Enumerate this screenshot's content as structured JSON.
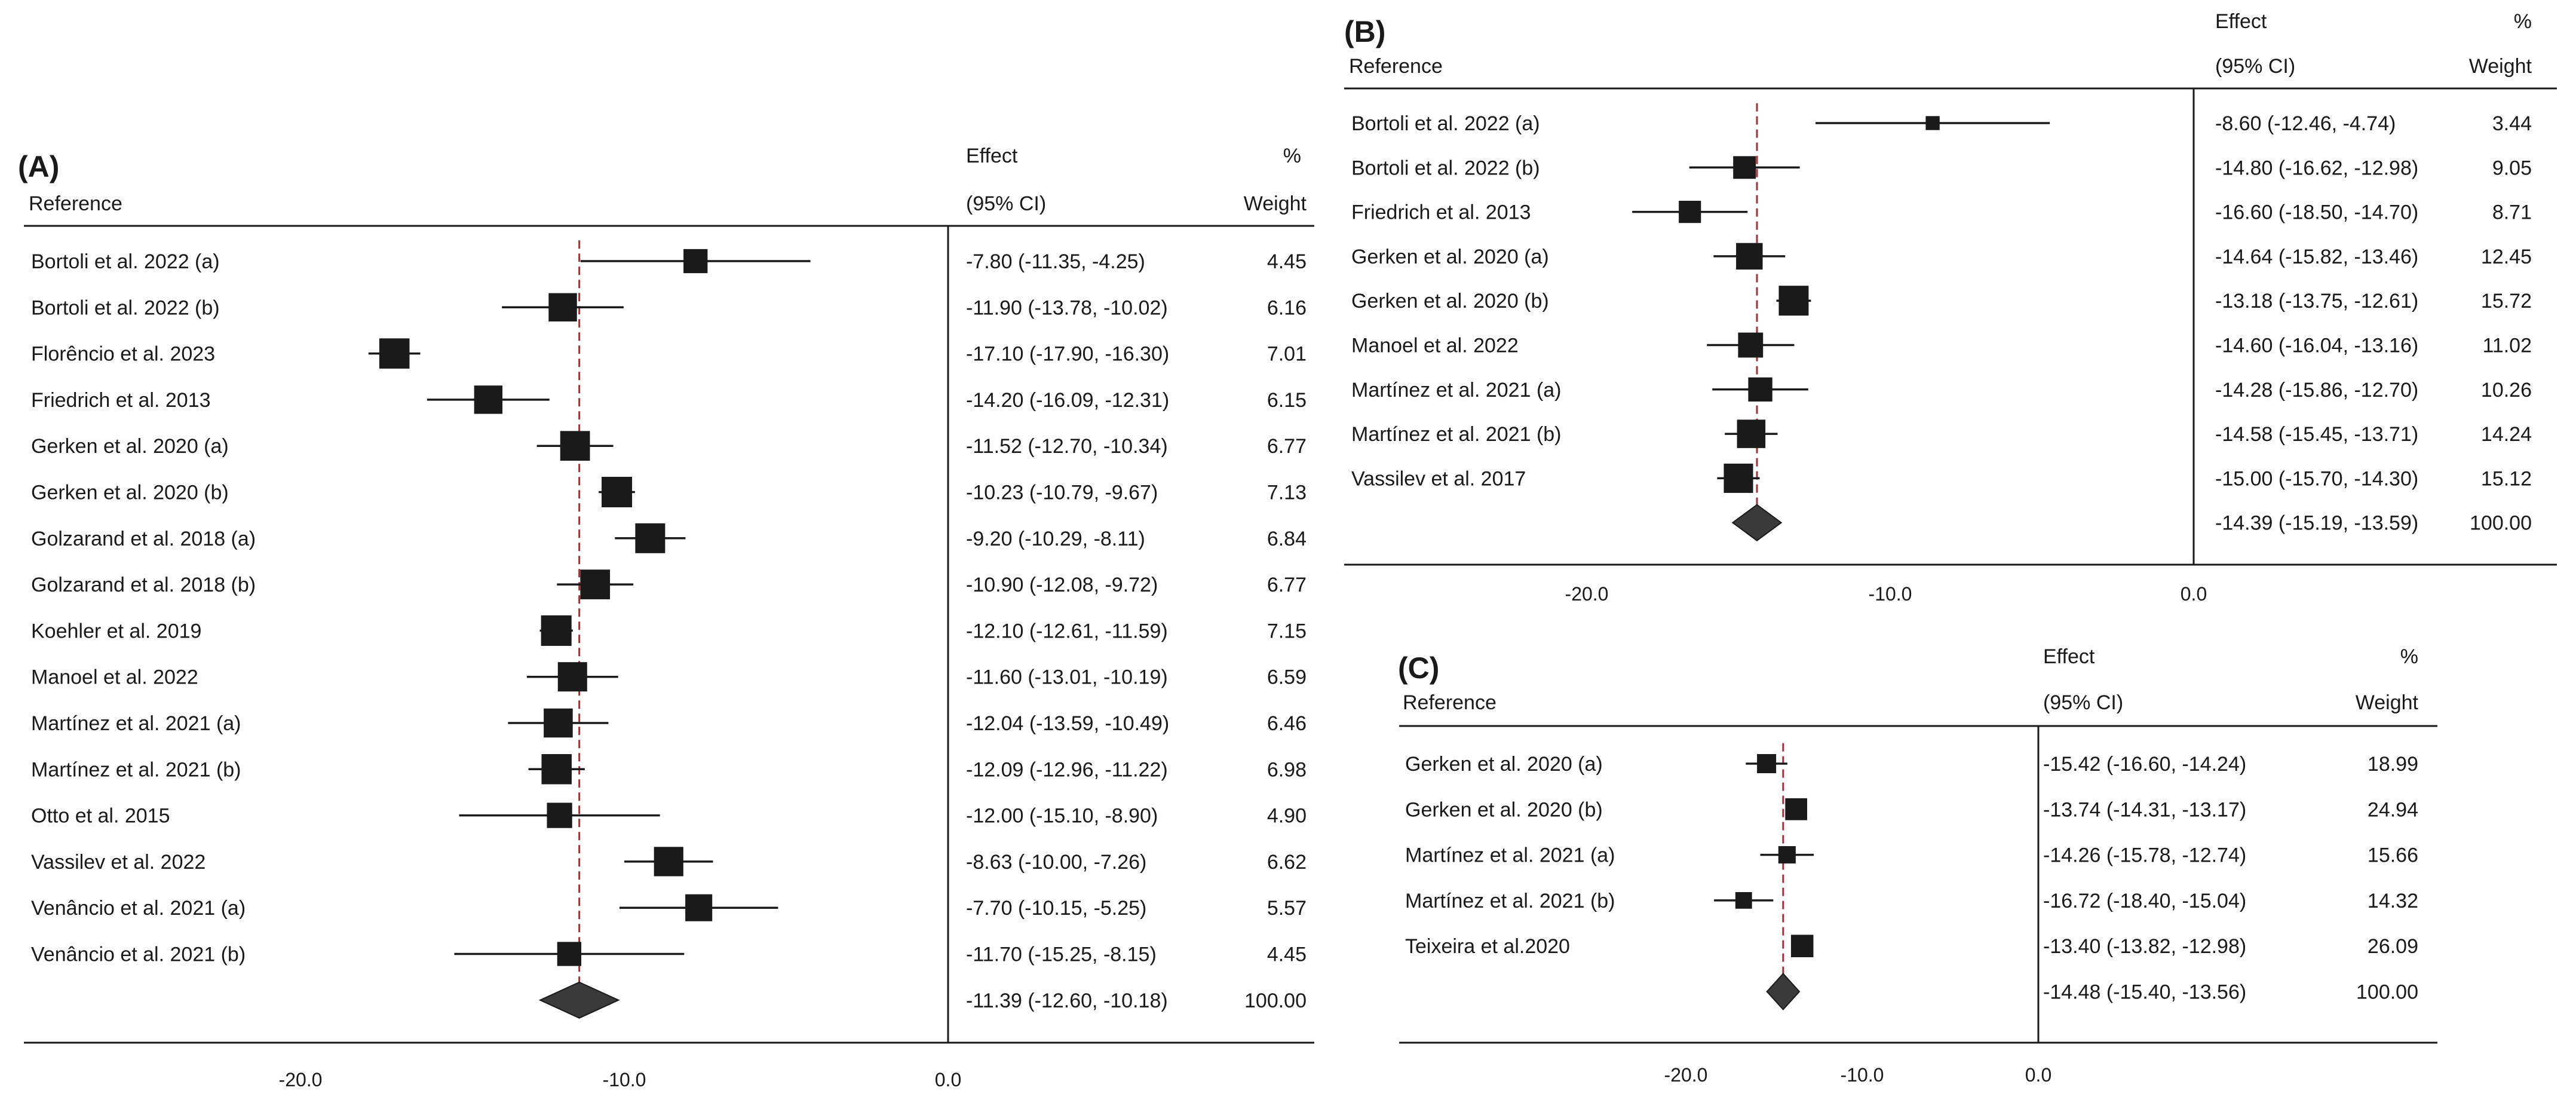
{
  "chart_data": [
    {
      "type": "forest",
      "panel_label": "(A)",
      "headers": {
        "reference": "Reference",
        "effect": "Effect",
        "ci": "(95% CI)",
        "percent": "%",
        "weight": "Weight"
      },
      "x_ticks": [
        -20.0,
        -10.0,
        0.0
      ],
      "x_tick_labels": [
        "-20.0",
        "-10.0",
        "0.0"
      ],
      "xlim": [
        -27,
        0
      ],
      "pooled_line": -11.39,
      "studies": [
        {
          "label": "Bortoli et al. 2022 (a)",
          "effect": -7.8,
          "lower": -11.35,
          "upper": -4.25,
          "effect_text": "-7.80 (-11.35, -4.25)",
          "weight": 4.45,
          "weight_text": "4.45"
        },
        {
          "label": "Bortoli et al. 2022 (b)",
          "effect": -11.9,
          "lower": -13.78,
          "upper": -10.02,
          "effect_text": "-11.90 (-13.78, -10.02)",
          "weight": 6.16,
          "weight_text": "6.16"
        },
        {
          "label": "Florêncio et al. 2023",
          "effect": -17.1,
          "lower": -17.9,
          "upper": -16.3,
          "effect_text": "-17.10 (-17.90, -16.30)",
          "weight": 7.01,
          "weight_text": "7.01"
        },
        {
          "label": "Friedrich et al. 2013",
          "effect": -14.2,
          "lower": -16.09,
          "upper": -12.31,
          "effect_text": "-14.20 (-16.09, -12.31)",
          "weight": 6.15,
          "weight_text": "6.15"
        },
        {
          "label": "Gerken et al. 2020 (a)",
          "effect": -11.52,
          "lower": -12.7,
          "upper": -10.34,
          "effect_text": "-11.52 (-12.70, -10.34)",
          "weight": 6.77,
          "weight_text": "6.77"
        },
        {
          "label": "Gerken et al. 2020 (b)",
          "effect": -10.23,
          "lower": -10.79,
          "upper": -9.67,
          "effect_text": "-10.23 (-10.79, -9.67)",
          "weight": 7.13,
          "weight_text": "7.13"
        },
        {
          "label": "Golzarand et al. 2018 (a)",
          "effect": -9.2,
          "lower": -10.29,
          "upper": -8.11,
          "effect_text": "-9.20 (-10.29, -8.11)",
          "weight": 6.84,
          "weight_text": "6.84"
        },
        {
          "label": "Golzarand et al. 2018 (b)",
          "effect": -10.9,
          "lower": -12.08,
          "upper": -9.72,
          "effect_text": "-10.90 (-12.08, -9.72)",
          "weight": 6.77,
          "weight_text": "6.77"
        },
        {
          "label": "Koehler et al. 2019",
          "effect": -12.1,
          "lower": -12.61,
          "upper": -11.59,
          "effect_text": "-12.10 (-12.61, -11.59)",
          "weight": 7.15,
          "weight_text": "7.15"
        },
        {
          "label": "Manoel et al. 2022",
          "effect": -11.6,
          "lower": -13.01,
          "upper": -10.19,
          "effect_text": "-11.60 (-13.01, -10.19)",
          "weight": 6.59,
          "weight_text": "6.59"
        },
        {
          "label": "Martínez et al. 2021 (a)",
          "effect": -12.04,
          "lower": -13.59,
          "upper": -10.49,
          "effect_text": "-12.04 (-13.59, -10.49)",
          "weight": 6.46,
          "weight_text": "6.46"
        },
        {
          "label": "Martínez et al. 2021 (b)",
          "effect": -12.09,
          "lower": -12.96,
          "upper": -11.22,
          "effect_text": "-12.09 (-12.96, -11.22)",
          "weight": 6.98,
          "weight_text": "6.98"
        },
        {
          "label": "Otto et al. 2015",
          "effect": -12.0,
          "lower": -15.1,
          "upper": -8.9,
          "effect_text": "-12.00 (-15.10, -8.90)",
          "weight": 4.9,
          "weight_text": "4.90"
        },
        {
          "label": "Vassilev et al. 2022",
          "effect": -8.63,
          "lower": -10.0,
          "upper": -7.26,
          "effect_text": "-8.63 (-10.00, -7.26)",
          "weight": 6.62,
          "weight_text": "6.62"
        },
        {
          "label": "Venâncio et al. 2021 (a)",
          "effect": -7.7,
          "lower": -10.15,
          "upper": -5.25,
          "effect_text": "-7.70 (-10.15, -5.25)",
          "weight": 5.57,
          "weight_text": "5.57"
        },
        {
          "label": "Venâncio et al. 2021 (b)",
          "effect": -11.7,
          "lower": -15.25,
          "upper": -8.15,
          "effect_text": "-11.70 (-15.25, -8.15)",
          "weight": 4.45,
          "weight_text": "4.45"
        }
      ],
      "overall": {
        "effect": -11.39,
        "lower": -12.6,
        "upper": -10.18,
        "effect_text": "-11.39 (-12.60, -10.18)",
        "weight_text": "100.00"
      }
    },
    {
      "type": "forest",
      "panel_label": "(B)",
      "headers": {
        "reference": "Reference",
        "effect": "Effect",
        "ci": "(95% CI)",
        "percent": "%",
        "weight": "Weight"
      },
      "x_ticks": [
        -20.0,
        -10.0,
        0.0
      ],
      "x_tick_labels": [
        "-20.0",
        "-10.0",
        "0.0"
      ],
      "xlim": [
        -28,
        0
      ],
      "pooled_line": -14.39,
      "studies": [
        {
          "label": "Bortoli et al. 2022 (a)",
          "effect": -8.6,
          "lower": -12.46,
          "upper": -4.74,
          "effect_text": "-8.60 (-12.46, -4.74)",
          "weight": 3.44,
          "weight_text": "3.44"
        },
        {
          "label": "Bortoli et al. 2022 (b)",
          "effect": -14.8,
          "lower": -16.62,
          "upper": -12.98,
          "effect_text": "-14.80 (-16.62, -12.98)",
          "weight": 9.05,
          "weight_text": "9.05"
        },
        {
          "label": "Friedrich et al. 2013",
          "effect": -16.6,
          "lower": -18.5,
          "upper": -14.7,
          "effect_text": "-16.60 (-18.50, -14.70)",
          "weight": 8.71,
          "weight_text": "8.71"
        },
        {
          "label": "Gerken et al. 2020 (a)",
          "effect": -14.64,
          "lower": -15.82,
          "upper": -13.46,
          "effect_text": "-14.64 (-15.82, -13.46)",
          "weight": 12.45,
          "weight_text": "12.45"
        },
        {
          "label": "Gerken et al. 2020 (b)",
          "effect": -13.18,
          "lower": -13.75,
          "upper": -12.61,
          "effect_text": "-13.18 (-13.75, -12.61)",
          "weight": 15.72,
          "weight_text": "15.72"
        },
        {
          "label": "Manoel et al. 2022",
          "effect": -14.6,
          "lower": -16.04,
          "upper": -13.16,
          "effect_text": "-14.60 (-16.04, -13.16)",
          "weight": 11.02,
          "weight_text": "11.02"
        },
        {
          "label": "Martínez et al. 2021 (a)",
          "effect": -14.28,
          "lower": -15.86,
          "upper": -12.7,
          "effect_text": "-14.28 (-15.86, -12.70)",
          "weight": 10.26,
          "weight_text": "10.26"
        },
        {
          "label": "Martínez et al. 2021 (b)",
          "effect": -14.58,
          "lower": -15.45,
          "upper": -13.71,
          "effect_text": "-14.58 (-15.45, -13.71)",
          "weight": 14.24,
          "weight_text": "14.24"
        },
        {
          "label": "Vassilev et al. 2017",
          "effect": -15.0,
          "lower": -15.7,
          "upper": -14.3,
          "effect_text": "-15.00 (-15.70, -14.30)",
          "weight": 15.12,
          "weight_text": "15.12"
        }
      ],
      "overall": {
        "effect": -14.39,
        "lower": -15.19,
        "upper": -13.59,
        "effect_text": "-14.39 (-15.19, -13.59)",
        "weight_text": "100.00"
      }
    },
    {
      "type": "forest",
      "panel_label": "(C)",
      "headers": {
        "reference": "Reference",
        "effect": "Effect",
        "ci": "(95% CI)",
        "percent": "%",
        "weight": "Weight"
      },
      "x_ticks": [
        -20.0,
        -10.0,
        0.0
      ],
      "x_tick_labels": [
        "-20.0",
        "-10.0",
        "0.0"
      ],
      "xlim": [
        -36,
        0
      ],
      "pooled_line": -14.48,
      "studies": [
        {
          "label": "Gerken et al. 2020 (a)",
          "effect": -15.42,
          "lower": -16.6,
          "upper": -14.24,
          "effect_text": "-15.42 (-16.60, -14.24)",
          "weight": 18.99,
          "weight_text": "18.99"
        },
        {
          "label": "Gerken et al. 2020 (b)",
          "effect": -13.74,
          "lower": -14.31,
          "upper": -13.17,
          "effect_text": "-13.74 (-14.31, -13.17)",
          "weight": 24.94,
          "weight_text": "24.94"
        },
        {
          "label": "Martínez et al. 2021 (a)",
          "effect": -14.26,
          "lower": -15.78,
          "upper": -12.74,
          "effect_text": "-14.26 (-15.78, -12.74)",
          "weight": 15.66,
          "weight_text": "15.66"
        },
        {
          "label": "Martínez et al. 2021 (b)",
          "effect": -16.72,
          "lower": -18.4,
          "upper": -15.04,
          "effect_text": "-16.72 (-18.40, -15.04)",
          "weight": 14.32,
          "weight_text": "14.32"
        },
        {
          "label": "Teixeira et al.2020",
          "effect": -13.4,
          "lower": -13.82,
          "upper": -12.98,
          "effect_text": "-13.40 (-13.82, -12.98)",
          "weight": 26.09,
          "weight_text": "26.09"
        }
      ],
      "overall": {
        "effect": -14.48,
        "lower": -15.4,
        "upper": -13.56,
        "effect_text": "-14.48 (-15.40, -13.56)",
        "weight_text": "100.00"
      }
    }
  ],
  "colors": {
    "marker": "#1a1a1a",
    "line": "#1a1a1a",
    "pooled_line": "#a0303a",
    "diamond": "#3a3a3a",
    "background": "#ffffff"
  }
}
